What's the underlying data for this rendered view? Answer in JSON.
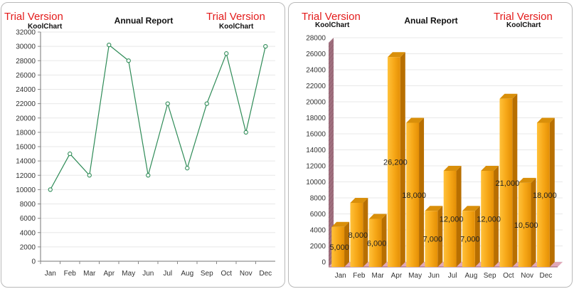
{
  "watermark": {
    "trial_text": "Trial Version",
    "brand_text": "KoolChart"
  },
  "colors": {
    "line": "#2e8b57",
    "bar_front": "#f5a516",
    "bar_top": "#d98f0a",
    "bar_side": "#b86f00",
    "wall": "#a0707f",
    "floor": "#e0a8b8",
    "grid": "#e8e8e8",
    "trial": "#e31b1b"
  },
  "chart_data": [
    {
      "type": "line",
      "title": "Annual Report",
      "categories": [
        "Jan",
        "Feb",
        "Mar",
        "Apr",
        "May",
        "Jun",
        "Jul",
        "Aug",
        "Sep",
        "Oct",
        "Nov",
        "Dec"
      ],
      "values": [
        10000,
        15000,
        12000,
        30200,
        28000,
        12000,
        22000,
        13000,
        22000,
        29000,
        18000,
        30000
      ],
      "ylim": [
        0,
        32000
      ],
      "ystep": 2000,
      "yticks": [
        "0",
        "2000",
        "4000",
        "6000",
        "8000",
        "10000",
        "12000",
        "14000",
        "16000",
        "18000",
        "20000",
        "22000",
        "24000",
        "26000",
        "28000",
        "30000",
        "32000"
      ],
      "grid": true,
      "markers": "hollow-circle"
    },
    {
      "type": "bar",
      "title": "Anual Report",
      "categories": [
        "Jan",
        "Feb",
        "Mar",
        "Apr",
        "May",
        "Jun",
        "Jul",
        "Aug",
        "Sep",
        "Oct",
        "Nov",
        "Dec"
      ],
      "values": [
        5000,
        8000,
        6000,
        26200,
        18000,
        7000,
        12000,
        7000,
        12000,
        21000,
        10500,
        18000
      ],
      "data_labels": [
        "5,000",
        "8,000",
        "6,000",
        "26,200",
        "18,000",
        "7,000",
        "12,000",
        "7,000",
        "12,000",
        "21,000",
        "10,500",
        "18,000"
      ],
      "ylim": [
        0,
        28000
      ],
      "ystep": 2000,
      "yticks": [
        "0",
        "2000",
        "4000",
        "6000",
        "8000",
        "10000",
        "12000",
        "14000",
        "16000",
        "18000",
        "20000",
        "22000",
        "24000",
        "26000",
        "28000"
      ],
      "grid": true,
      "style": "3d"
    }
  ]
}
